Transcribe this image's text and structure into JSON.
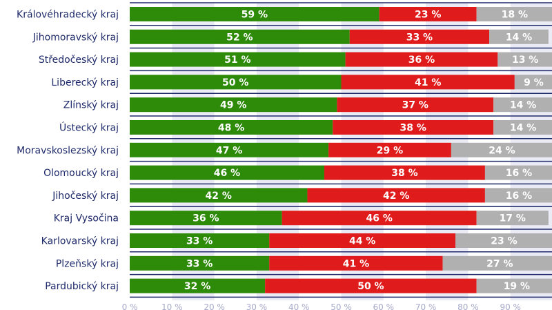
{
  "chart_data": {
    "type": "bar",
    "orientation": "horizontal",
    "stacked": true,
    "title": "",
    "xlabel": "",
    "ylabel": "",
    "xlim": [
      0,
      100
    ],
    "xticks": [
      "0 %",
      "10 %",
      "20 %",
      "30 %",
      "40 %",
      "50 %",
      "60 %",
      "70 %",
      "80 %",
      "90 %"
    ],
    "categories": [
      "Královéhradecký kraj",
      "Jihomoravský kraj",
      "Středočeský kraj",
      "Liberecký kraj",
      "Zlínský kraj",
      "Ústecký kraj",
      "Moravskoslezský kraj",
      "Olomoucký kraj",
      "Jihočeský kraj",
      "Kraj Vysočina",
      "Karlovarský kraj",
      "Plzeňský kraj",
      "Pardubický kraj"
    ],
    "series": [
      {
        "name": "green",
        "color": "#2e8b0a",
        "values": [
          59,
          52,
          51,
          50,
          49,
          48,
          47,
          46,
          42,
          36,
          33,
          33,
          32
        ]
      },
      {
        "name": "red",
        "color": "#e01b1b",
        "values": [
          23,
          33,
          36,
          41,
          37,
          38,
          29,
          38,
          42,
          46,
          44,
          41,
          50
        ]
      },
      {
        "name": "gray",
        "color": "#b0b0b0",
        "values": [
          18,
          14,
          13,
          9,
          14,
          14,
          24,
          16,
          16,
          17,
          23,
          27,
          19
        ]
      }
    ],
    "value_suffix": " %",
    "colors": {
      "band": "#ebebf5",
      "separator": "#1f2a6b",
      "text": "#1f2a6b",
      "tick": "#a6a9c8"
    }
  }
}
